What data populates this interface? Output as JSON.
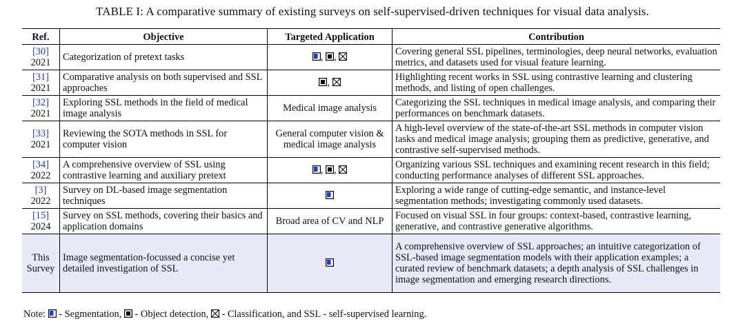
{
  "caption": "TABLE I:  A comparative summary of existing surveys on self-supervised-driven techniques for visual data analysis.",
  "columns": {
    "ref": "Ref.",
    "objective": "Objective",
    "application": "Targeted Application",
    "contribution": "Contribution"
  },
  "rows": [
    {
      "ref": "[30]",
      "year": "2021",
      "objective": "Categorization of pretext tasks",
      "application": {
        "icons": [
          "segmentation",
          "object-detection",
          "classification"
        ]
      },
      "contribution": "Covering general SSL pipelines, terminologies, deep neural networks, evaluation metrics, and datasets used for visual feature learning."
    },
    {
      "ref": "[31]",
      "year": "2021",
      "objective": "Comparative analysis on both supervised and SSL approaches",
      "application": {
        "icons": [
          "object-detection",
          "classification"
        ]
      },
      "contribution": "Highlighting recent works in SSL using contrastive learning and clustering methods, and listing of open challenges."
    },
    {
      "ref": "[32]",
      "year": "2021",
      "objective": "Exploring SSL methods in the field of medical image analysis",
      "application": {
        "text": "Medical image analysis"
      },
      "contribution": "Categorizing the SSL techniques in medical image analysis, and comparing their performances on benchmark datasets."
    },
    {
      "ref": "[33]",
      "year": "2021",
      "objective": "Reviewing the SOTA methods in SSL for computer vision",
      "application": {
        "text": "General computer vision & medical image analysis"
      },
      "contribution": "A high-level overview of the state-of-the-art SSL methods in computer vision tasks and medical image analysis; grouping them as predictive, generative, and contrastive self-supervised methods."
    },
    {
      "ref": "[34]",
      "year": "2022",
      "objective": "A comprehensive overview of SSL using contrastive learning and auxiliary pretext",
      "application": {
        "icons": [
          "segmentation",
          "object-detection",
          "classification"
        ]
      },
      "contribution": "Organizing various SSL techniques and examining recent research in this field; conducting performance analyses of different SSL approaches."
    },
    {
      "ref": "[3]",
      "year": "2022",
      "objective": "Survey on DL-based image segmentation techniques",
      "application": {
        "icons": [
          "segmentation"
        ]
      },
      "contribution": "Exploring a wide range of cutting-edge semantic, and instance-level segmentation methods; investigating commonly used datasets."
    },
    {
      "ref": "[15]",
      "year": "2024",
      "objective": "Survey on SSL methods, covering their basics and application domains",
      "application": {
        "text": "Broad area of CV and NLP"
      },
      "contribution": "Focused on visual SSL in four groups: context-based, contrastive learning, generative, and contrastive generative algorithms."
    },
    {
      "ref": "This",
      "year": "Survey",
      "objective": "Image segmentation-focussed a concise yet detailed investigation of SSL",
      "application": {
        "icons": [
          "segmentation"
        ]
      },
      "contribution": "A comprehensive overview of SSL approaches; an intuitive categorization of SSL-based image segmentation models with their application examples; a curated review of benchmark datasets; a depth analysis of SSL challenges in image segmentation and emerging research directions."
    }
  ],
  "note": {
    "prefix": "Note:",
    "segmentation": " - Segmentation,",
    "detection": " - Object detection,",
    "classification": " - Classification, and SSL - self-supervised learning."
  },
  "colors": {
    "ref_link": "#1f3bcf",
    "highlight_row": "#e9eaf8",
    "seg_fill": "#1f3bcf"
  }
}
